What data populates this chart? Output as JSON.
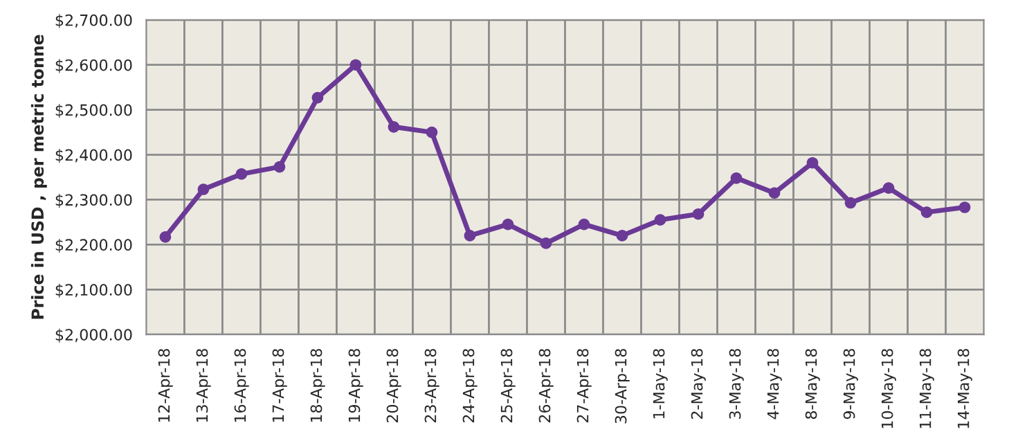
{
  "chart_data": {
    "type": "line",
    "ylabel": "Price in USD , per metric tonne",
    "categories": [
      "12-Apr-18",
      "13-Apr-18",
      "16-Apr-18",
      "17-Apr-18",
      "18-Apr-18",
      "19-Apr-18",
      "20-Apr-18",
      "23-Apr-18",
      "24-Apr-18",
      "25-Apr-18",
      "26-Apr-18",
      "27-Apr-18",
      "30-Arp-18",
      "1-May-18",
      "2-May-18",
      "3-May-18",
      "4-May-18",
      "8-May-18",
      "9-May-18",
      "10-May-18",
      "11-May-18",
      "14-May-18"
    ],
    "series": [
      {
        "color": "#6b3a96",
        "values": [
          2217,
          2323,
          2357,
          2373,
          2527,
          2600,
          2462,
          2450,
          2220,
          2245,
          2203,
          2245,
          2220,
          2255,
          2268,
          2348,
          2315,
          2382,
          2293,
          2326,
          2272,
          2283
        ]
      }
    ],
    "ylim": [
      2000,
      2700
    ],
    "yticks": [
      {
        "value": 2000,
        "label": "$2,000.00"
      },
      {
        "value": 2100,
        "label": "$2,100.00"
      },
      {
        "value": 2200,
        "label": "$2,200.00"
      },
      {
        "value": 2300,
        "label": "$2,300.00"
      },
      {
        "value": 2400,
        "label": "$2,400.00"
      },
      {
        "value": 2500,
        "label": "$2,500.00"
      },
      {
        "value": 2600,
        "label": "$2,600.00"
      },
      {
        "value": 2700,
        "label": "$2,700.00"
      }
    ],
    "grid": true,
    "marker": "circle",
    "line_style": "solid"
  }
}
